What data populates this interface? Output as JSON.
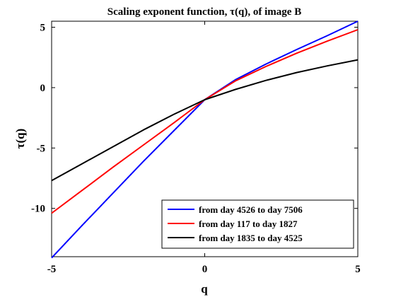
{
  "chart_data": {
    "type": "line",
    "title": "Scaling exponent function, τ(q), of image B",
    "xlabel": "q",
    "ylabel": "τ(q)",
    "xlim": [
      -5,
      5
    ],
    "ylim": [
      -14,
      5.5
    ],
    "xticks": [
      -5,
      0,
      5
    ],
    "yticks": [
      -10,
      -5,
      0,
      5
    ],
    "grid": false,
    "legend_position": "bottom-right",
    "series": [
      {
        "name": "from day 4526 to day 7506",
        "color": "#0000ff",
        "x": [
          -5,
          -4,
          -3,
          -2,
          -1,
          0,
          1,
          2,
          3,
          4,
          5
        ],
        "y": [
          -14.1,
          -11.4,
          -8.75,
          -6.1,
          -3.55,
          -1.0,
          0.65,
          1.95,
          3.15,
          4.3,
          5.5
        ]
      },
      {
        "name": "from day 117 to day 1827",
        "color": "#ff0000",
        "x": [
          -5,
          -4,
          -3,
          -2,
          -1,
          0,
          1,
          2,
          3,
          4,
          5
        ],
        "y": [
          -10.4,
          -8.5,
          -6.6,
          -4.75,
          -2.9,
          -1.0,
          0.55,
          1.75,
          2.85,
          3.85,
          4.8
        ]
      },
      {
        "name": "from day 1835 to day 4525",
        "color": "#000000",
        "x": [
          -5,
          -4,
          -3,
          -2,
          -1,
          0,
          1,
          2,
          3,
          4,
          5
        ],
        "y": [
          -7.7,
          -6.3,
          -4.9,
          -3.5,
          -2.2,
          -1.0,
          -0.15,
          0.6,
          1.25,
          1.8,
          2.3
        ]
      }
    ]
  }
}
